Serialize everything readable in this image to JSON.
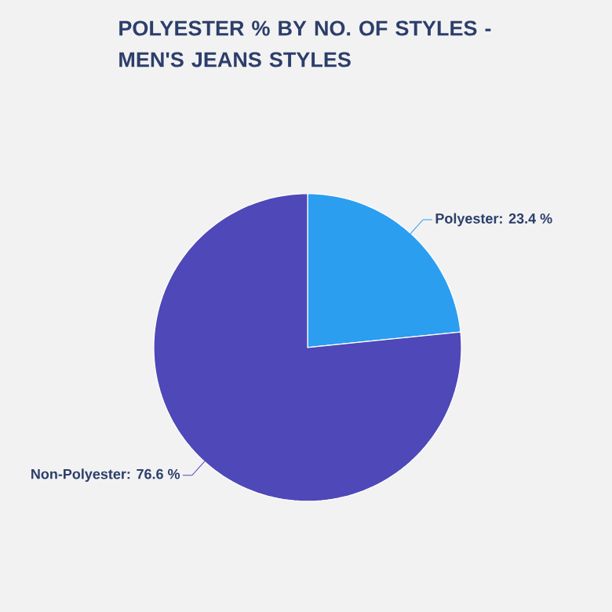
{
  "chart_data": {
    "type": "pie",
    "title": "POLYESTER % BY NO. OF STYLES - MEN'S JEANS STYLES",
    "categories": [
      "Polyester",
      "Non-Polyester"
    ],
    "values": [
      23.4,
      76.6
    ],
    "value_labels": [
      ": 23.4 %",
      ": 76.6 %"
    ],
    "colors": [
      "#2b9ef0",
      "#4f48b8"
    ]
  }
}
